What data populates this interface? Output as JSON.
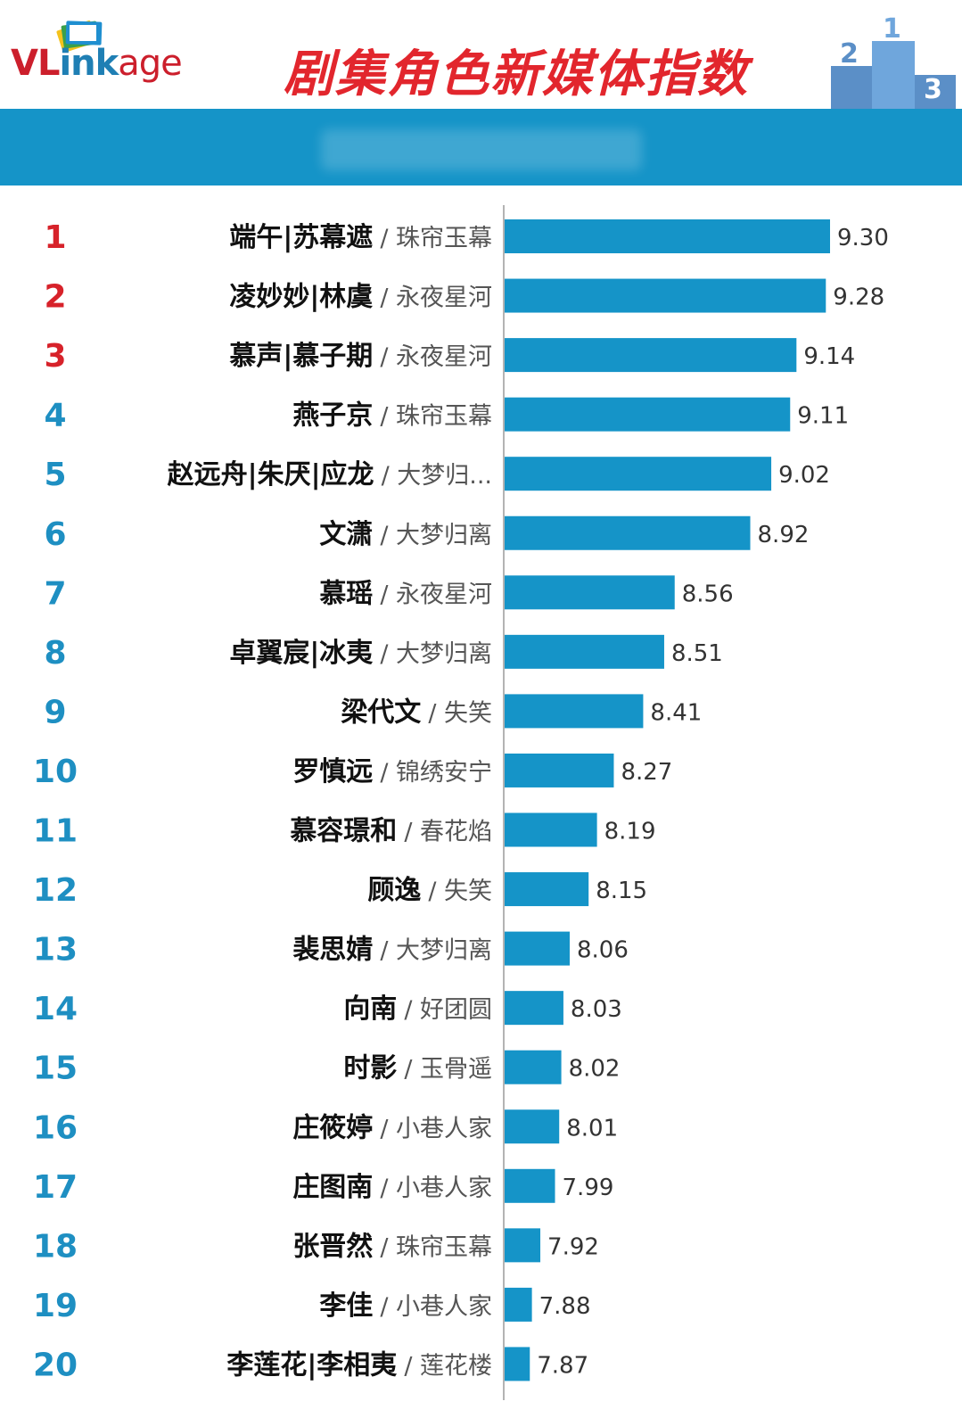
{
  "header": {
    "logo_vl": "VL",
    "logo_ink": "ink",
    "logo_age": "age",
    "title": "剧集角色新媒体指数"
  },
  "colors": {
    "bar": "#1594c8",
    "rank_top": "#d7222a",
    "rank_other": "#1e8fc2",
    "band": "#1594c8"
  },
  "icons": {
    "logo_mark": "stacked-cards-icon",
    "podium": "podium-icon"
  },
  "chart_data": {
    "type": "bar",
    "orientation": "horizontal",
    "categories": [
      {
        "rank": "1",
        "name": "端午|苏幕遮",
        "show": "珠帘玉幕"
      },
      {
        "rank": "2",
        "name": "凌妙妙|林虞",
        "show": "永夜星河"
      },
      {
        "rank": "3",
        "name": "慕声|慕子期",
        "show": "永夜星河"
      },
      {
        "rank": "4",
        "name": "燕子京",
        "show": "珠帘玉幕"
      },
      {
        "rank": "5",
        "name": "赵远舟|朱厌|应龙",
        "show": "大梦归..."
      },
      {
        "rank": "6",
        "name": "文潇",
        "show": "大梦归离"
      },
      {
        "rank": "7",
        "name": "慕瑶",
        "show": "永夜星河"
      },
      {
        "rank": "8",
        "name": "卓翼宸|冰夷",
        "show": "大梦归离"
      },
      {
        "rank": "9",
        "name": "梁代文",
        "show": "失笑"
      },
      {
        "rank": "10",
        "name": "罗慎远",
        "show": "锦绣安宁"
      },
      {
        "rank": "11",
        "name": "慕容璟和",
        "show": "春花焰"
      },
      {
        "rank": "12",
        "name": "顾逸",
        "show": "失笑"
      },
      {
        "rank": "13",
        "name": "裴思婧",
        "show": "大梦归离"
      },
      {
        "rank": "14",
        "name": "向南",
        "show": "好团圆"
      },
      {
        "rank": "15",
        "name": "时影",
        "show": "玉骨遥"
      },
      {
        "rank": "16",
        "name": "庄筱婷",
        "show": "小巷人家"
      },
      {
        "rank": "17",
        "name": "庄图南",
        "show": "小巷人家"
      },
      {
        "rank": "18",
        "name": "张晋然",
        "show": "珠帘玉幕"
      },
      {
        "rank": "19",
        "name": "李佳",
        "show": "小巷人家"
      },
      {
        "rank": "20",
        "name": "李莲花|李相夷",
        "show": "莲花楼"
      }
    ],
    "values": [
      9.3,
      9.28,
      9.14,
      9.11,
      9.02,
      8.92,
      8.56,
      8.51,
      8.41,
      8.27,
      8.19,
      8.15,
      8.06,
      8.03,
      8.02,
      8.01,
      7.99,
      7.92,
      7.88,
      7.87
    ],
    "value_labels": [
      "9.30",
      "9.28",
      "9.14",
      "9.11",
      "9.02",
      "8.92",
      "8.56",
      "8.51",
      "8.41",
      "8.27",
      "8.19",
      "8.15",
      "8.06",
      "8.03",
      "8.02",
      "8.01",
      "7.99",
      "7.92",
      "7.88",
      "7.87"
    ],
    "xlim": [
      7.75,
      9.3
    ],
    "grid": false,
    "legend": "none"
  }
}
